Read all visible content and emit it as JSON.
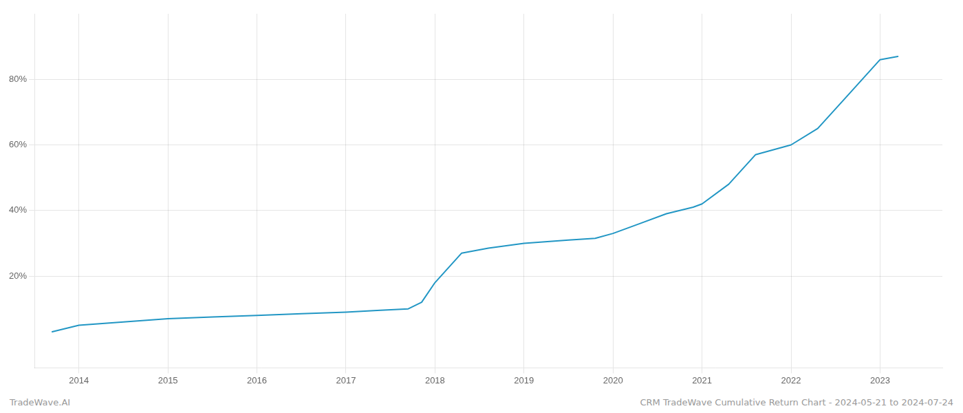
{
  "chart_data": {
    "type": "line",
    "x": [
      2013.7,
      2014,
      2014.5,
      2015,
      2015.5,
      2016,
      2016.5,
      2017,
      2017.35,
      2017.7,
      2017.85,
      2018,
      2018.3,
      2018.6,
      2019,
      2019.5,
      2019.8,
      2020,
      2020.3,
      2020.6,
      2020.9,
      2021,
      2021.3,
      2021.6,
      2022,
      2022.3,
      2022.6,
      2023,
      2023.2
    ],
    "values": [
      3,
      5,
      6,
      7,
      7.5,
      8,
      8.5,
      9,
      9.5,
      10,
      12,
      18,
      27,
      28.5,
      30,
      31,
      31.5,
      33,
      36,
      39,
      41,
      42,
      48,
      57,
      60,
      65,
      74,
      86,
      87
    ],
    "color": "#2196c4",
    "xlim": [
      2013.5,
      2023.7
    ],
    "xticks": [
      2014,
      2015,
      2016,
      2017,
      2018,
      2019,
      2020,
      2021,
      2022,
      2023
    ],
    "ylim": [
      -8,
      100
    ],
    "yticks": [
      {
        "value": 20,
        "label": "20%"
      },
      {
        "value": 40,
        "label": "40%"
      },
      {
        "value": 60,
        "label": "60%"
      },
      {
        "value": 80,
        "label": "80%"
      }
    ],
    "grid": true,
    "annotations": [
      "TradeWave.AI",
      "CRM TradeWave Cumulative Return Chart - 2024-05-21 to 2024-07-24"
    ]
  }
}
